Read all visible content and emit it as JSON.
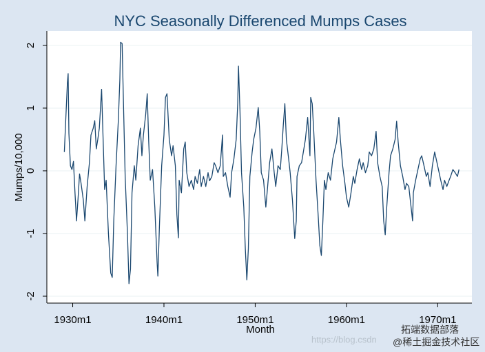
{
  "chart_data": {
    "type": "line",
    "title": "NYC Seasonally Differenced Mumps Cases",
    "x_label": "Month",
    "y_label": "Mumps/10,000",
    "x": [
      -371,
      -369,
      -367,
      -366,
      -365,
      -363,
      -361,
      -359,
      -357,
      -355,
      -353,
      -351,
      -349,
      -346,
      -344,
      -341,
      -338,
      -336,
      -333,
      -331,
      -329,
      -327,
      -325,
      -322,
      -320,
      -318,
      -316,
      -313,
      -310,
      -308,
      -306,
      -303,
      -300,
      -298,
      -297,
      -295,
      -293,
      -291,
      -288,
      -286,
      -284,
      -282,
      -279,
      -277,
      -274,
      -271,
      -269,
      -267,
      -264,
      -262,
      -260,
      -258,
      -255,
      -252,
      -249,
      -248,
      -246,
      -243,
      -240,
      -238,
      -236,
      -233,
      -230,
      -228,
      -225,
      -223,
      -221,
      -220,
      -217,
      -214,
      -212,
      -210,
      -207,
      -204,
      -201,
      -199,
      -196,
      -193,
      -191,
      -188,
      -185,
      -182,
      -180,
      -177,
      -174,
      -172,
      -169,
      -166,
      -163,
      -162,
      -159,
      -156,
      -153,
      -151,
      -148,
      -145,
      -143,
      -142,
      -140,
      -138,
      -135,
      -133,
      -131,
      -129,
      -127,
      -124,
      -122,
      -119,
      -116,
      -114,
      -112,
      -109,
      -106,
      -104,
      -101,
      -98,
      -95,
      -93,
      -90,
      -87,
      -85,
      -83,
      -81,
      -79,
      -76,
      -74,
      -71,
      -68,
      -66,
      -65,
      -62,
      -59,
      -56,
      -54,
      -51,
      -48,
      -47,
      -45,
      -43,
      -40,
      -37,
      -35,
      -33,
      -31,
      -29,
      -27,
      -24,
      -21,
      -18,
      -16,
      -13,
      -10,
      -8,
      -5,
      -2,
      0,
      3,
      6,
      9,
      11,
      14,
      17,
      20,
      22,
      25,
      28,
      30,
      33,
      36,
      39,
      41,
      44,
      47,
      49,
      51,
      53,
      56,
      58,
      61,
      64,
      66,
      68,
      71,
      74,
      77,
      79,
      82,
      85,
      87,
      88,
      91,
      94,
      97,
      99,
      102,
      105,
      107,
      110,
      113,
      116,
      118,
      121,
      124,
      127,
      129,
      132,
      135,
      137,
      140,
      143,
      146,
      148
    ],
    "values": [
      0.3,
      0.85,
      1.4,
      1.55,
      0.6,
      0.08,
      0.02,
      0.15,
      -0.35,
      -0.8,
      -0.45,
      -0.05,
      -0.2,
      -0.47,
      -0.8,
      -0.25,
      0.13,
      0.57,
      0.68,
      0.8,
      0.35,
      0.5,
      0.68,
      1.3,
      0.5,
      -0.3,
      -0.15,
      -1.0,
      -1.63,
      -1.7,
      -0.8,
      0.08,
      0.8,
      1.45,
      2.05,
      2.03,
      0.95,
      -0.09,
      -1.0,
      -1.8,
      -1.57,
      -0.35,
      0.08,
      -0.15,
      0.4,
      0.68,
      0.24,
      0.57,
      0.9,
      1.23,
      0.46,
      -0.15,
      0.02,
      -0.58,
      -1.46,
      -1.68,
      -0.9,
      0.08,
      0.57,
      1.17,
      1.23,
      0.5,
      0.24,
      0.4,
      0.08,
      -0.7,
      -1.07,
      -0.15,
      -0.35,
      0.35,
      0.46,
      -0.03,
      -0.25,
      -0.15,
      -0.3,
      -0.09,
      -0.2,
      0.02,
      -0.25,
      -0.09,
      -0.25,
      -0.03,
      -0.16,
      -0.09,
      0.13,
      0.08,
      -0.03,
      0.08,
      0.57,
      -0.09,
      -0.03,
      -0.25,
      -0.42,
      -0.03,
      0.19,
      0.5,
      1.07,
      1.67,
      0.95,
      -0.03,
      -0.58,
      -1.24,
      -1.74,
      -1.24,
      -0.09,
      0.3,
      0.5,
      0.68,
      1.01,
      0.63,
      -0.03,
      -0.15,
      -0.58,
      -0.3,
      0.13,
      0.35,
      -0.03,
      -0.25,
      0.08,
      0.02,
      0.35,
      0.74,
      1.07,
      0.5,
      0.19,
      -0.03,
      -0.47,
      -1.08,
      -0.8,
      -0.09,
      0.08,
      0.13,
      0.35,
      0.5,
      0.85,
      0.24,
      1.17,
      1.07,
      0.63,
      -0.15,
      -0.75,
      -1.19,
      -1.35,
      -0.8,
      -0.15,
      -0.3,
      -0.03,
      -0.15,
      0.19,
      0.3,
      0.46,
      0.85,
      0.5,
      0.08,
      -0.2,
      -0.42,
      -0.58,
      -0.35,
      -0.09,
      -0.2,
      0.02,
      0.19,
      0.02,
      0.13,
      -0.03,
      0.08,
      0.3,
      0.24,
      0.35,
      0.63,
      0.13,
      -0.09,
      -0.25,
      -0.8,
      -1.02,
      -0.58,
      -0.03,
      0.24,
      0.35,
      0.5,
      0.79,
      0.46,
      0.08,
      -0.09,
      -0.3,
      -0.2,
      -0.25,
      -0.58,
      -0.8,
      -0.35,
      -0.15,
      0.02,
      0.19,
      0.24,
      0.08,
      -0.09,
      -0.03,
      -0.25,
      0.08,
      0.3,
      0.19,
      0.02,
      -0.15,
      -0.3,
      -0.15,
      -0.25,
      -0.15,
      -0.09,
      0.02,
      -0.03,
      -0.09,
      0.02
    ],
    "color": "#1a476f",
    "xlim": [
      -394,
      165
    ],
    "xticks": [
      {
        "value": -360,
        "label": "1930m1"
      },
      {
        "value": -240,
        "label": "1940m1"
      },
      {
        "value": -120,
        "label": "1950m1"
      },
      {
        "value": 0,
        "label": "1960m1"
      },
      {
        "value": 120,
        "label": "1970m1"
      }
    ],
    "ylim": [
      -2.11,
      2.23
    ],
    "yticks": [
      -2,
      -1,
      0,
      1,
      2
    ],
    "grid": true
  },
  "watermark": {
    "url": "https://blog.csdn",
    "brand": "拓端数据部落",
    "community": "@稀土掘金技术社区"
  }
}
